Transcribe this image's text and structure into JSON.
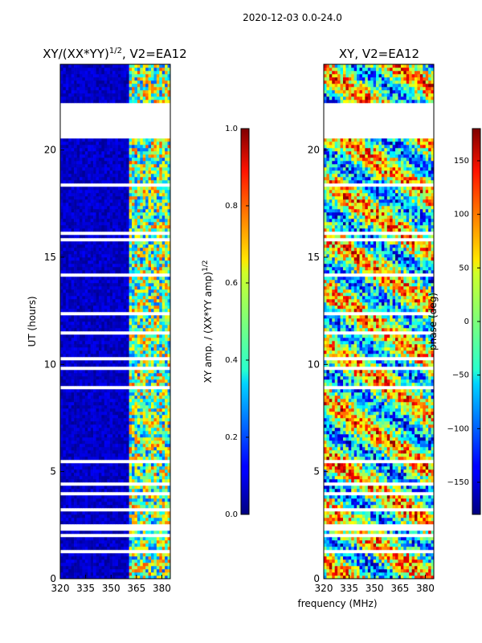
{
  "figure": {
    "suptitle": "2020-12-03 0.0-24.0",
    "shared_xlabel": "frequency (MHz)"
  },
  "chart_data": [
    {
      "type": "heatmap",
      "title_main": "XY/(XX*YY)",
      "title_exp": "1/2",
      "title_suffix": ", V2=EA12",
      "xlabel": "frequency (MHz)",
      "ylabel": "UT (hours)",
      "xlim": [
        320,
        385
      ],
      "ylim": [
        0,
        24
      ],
      "xticks": [
        320,
        335,
        350,
        365,
        380
      ],
      "yticks": [
        0,
        5,
        10,
        15,
        20
      ],
      "colormap": "jet",
      "colorbar": {
        "label_main": "XY amp. / (XX*YY amp)",
        "label_exp": "1/2",
        "range": [
          0.0,
          1.0
        ],
        "ticks": [
          "0.0",
          "0.2",
          "0.4",
          "0.6",
          "0.8",
          "1.0"
        ],
        "tick_values": [
          0.0,
          0.2,
          0.4,
          0.6,
          0.8,
          1.0
        ]
      },
      "gap_hours": [
        [
          20.7,
          22.2
        ],
        [
          18.3,
          18.4
        ],
        [
          11.4,
          11.6
        ]
      ]
    },
    {
      "type": "heatmap",
      "title_main": "XY, V2=EA12",
      "xlabel": "frequency (MHz)",
      "ylabel": "",
      "xlim": [
        320,
        385
      ],
      "ylim": [
        0,
        24
      ],
      "xticks": [
        320,
        335,
        350,
        365,
        380
      ],
      "yticks": [
        0,
        5,
        10,
        15,
        20
      ],
      "colormap": "jet",
      "colorbar": {
        "label_main": "phase (deg)",
        "range": [
          -180,
          180
        ],
        "ticks": [
          "−150",
          "−100",
          "−50",
          "0",
          "50",
          "100",
          "150"
        ],
        "tick_values": [
          -150,
          -100,
          -50,
          0,
          50,
          100,
          150
        ]
      },
      "gap_hours": [
        [
          20.7,
          22.2
        ],
        [
          18.3,
          18.4
        ],
        [
          11.4,
          11.6
        ]
      ]
    }
  ]
}
